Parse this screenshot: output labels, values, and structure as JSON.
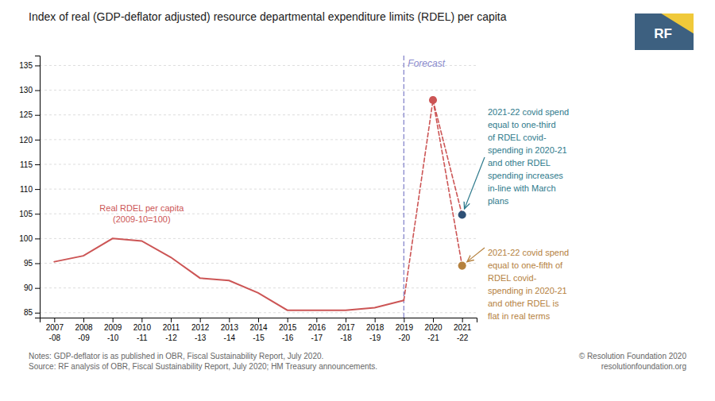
{
  "chart_data": {
    "type": "line",
    "title": "Index of real (GDP-deflator adjusted) resource departmental expenditure limits (RDEL) per capita",
    "categories": [
      "2007-08",
      "2008-09",
      "2009-10",
      "2010-11",
      "2011-12",
      "2012-13",
      "2013-14",
      "2014-15",
      "2015-16",
      "2016-17",
      "2017-18",
      "2018-19",
      "2019-20",
      "2020-21",
      "2021-22"
    ],
    "series": [
      {
        "type": "line",
        "color": "#cc5555",
        "line_style": "solid",
        "values": [
          95.3,
          96.5,
          100.0,
          99.5,
          96.2,
          92.0,
          91.5,
          89.0,
          85.5,
          85.5,
          85.5,
          86.0,
          87.5,
          null,
          null
        ]
      },
      {
        "type": "line",
        "color": "#cc5555",
        "line_style": "dashed",
        "values": [
          null,
          null,
          null,
          null,
          null,
          null,
          null,
          null,
          null,
          null,
          null,
          null,
          87.5,
          128.0,
          null
        ]
      },
      {
        "type": "line",
        "color": "#cc5555",
        "line_style": "dashed",
        "values": [
          null,
          null,
          null,
          null,
          null,
          null,
          null,
          null,
          null,
          null,
          null,
          null,
          null,
          128.0,
          104.8
        ]
      },
      {
        "type": "line",
        "color": "#cc5555",
        "line_style": "dashed",
        "values": [
          null,
          null,
          null,
          null,
          null,
          null,
          null,
          null,
          null,
          null,
          null,
          null,
          null,
          128.0,
          94.5
        ]
      },
      {
        "type": "scatter",
        "marker": "circle",
        "color": "#cc5555",
        "values": [
          null,
          null,
          null,
          null,
          null,
          null,
          null,
          null,
          null,
          null,
          null,
          null,
          null,
          128.0,
          null
        ]
      },
      {
        "type": "scatter",
        "marker": "circle",
        "color": "#2e5075",
        "values": [
          null,
          null,
          null,
          null,
          null,
          null,
          null,
          null,
          null,
          null,
          null,
          null,
          null,
          null,
          104.8
        ]
      },
      {
        "type": "scatter",
        "marker": "circle",
        "color": "#b5813e",
        "values": [
          null,
          null,
          null,
          null,
          null,
          null,
          null,
          null,
          null,
          null,
          null,
          null,
          null,
          null,
          94.5
        ]
      }
    ],
    "ylim": [
      84,
      137
    ],
    "yticks": [
      85,
      90,
      95,
      100,
      105,
      110,
      115,
      120,
      125,
      130,
      135
    ],
    "grid": true,
    "forecast_marker": {
      "at": "2019-20",
      "label": "Forecast",
      "color": "#8888cc"
    },
    "line_label": {
      "text": "Real RDEL per capita\n(2009-10=100)",
      "color": "#cc5555"
    },
    "annotations": [
      {
        "text": "2021-22 covid spend\nequal to one-third\nof RDEL covid-\nspending in 2020-21\nand other RDEL\nspending increases\nin-line with March\nplans",
        "color": "#2e7a8c"
      },
      {
        "text": "2021-22 covid spend\nequal to one-fifth of\nRDEL covid-\nspending in 2020-21\nand other RDEL is\nflat in real terms",
        "color": "#b5813e"
      }
    ],
    "notes": "Notes: GDP-deflator is as published in OBR, Fiscal Sustainability Report, July 2020.\nSource: RF analysis of OBR, Fiscal Sustainability Report, July 2020; HM Treasury announcements.",
    "copyright": "© Resolution Foundation 2020\nresolutionfoundation.org",
    "logo": {
      "text": "RF",
      "colors": [
        "#3d6080",
        "#f0c93a"
      ]
    }
  }
}
